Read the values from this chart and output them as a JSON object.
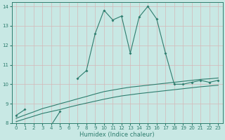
{
  "xlabel": "Humidex (Indice chaleur)",
  "x_values": [
    0,
    1,
    2,
    3,
    4,
    5,
    6,
    7,
    8,
    9,
    10,
    11,
    12,
    13,
    14,
    15,
    16,
    17,
    18,
    19,
    20,
    21,
    22,
    23
  ],
  "line1_y": [
    8.4,
    8.7,
    null,
    7.9,
    7.9,
    8.6,
    null,
    10.3,
    10.7,
    12.6,
    13.8,
    13.3,
    13.5,
    11.6,
    13.45,
    14.0,
    13.35,
    11.6,
    10.0,
    10.0,
    10.1,
    10.2,
    10.1,
    10.2
  ],
  "line2_y": [
    8.25,
    8.42,
    8.58,
    8.75,
    8.87,
    9.0,
    9.12,
    9.25,
    9.37,
    9.5,
    9.62,
    9.7,
    9.78,
    9.85,
    9.9,
    9.95,
    10.0,
    10.05,
    10.1,
    10.15,
    10.2,
    10.25,
    10.28,
    10.32
  ],
  "line3_y": [
    8.08,
    8.22,
    8.36,
    8.5,
    8.6,
    8.7,
    8.82,
    8.93,
    9.03,
    9.13,
    9.23,
    9.32,
    9.4,
    9.46,
    9.52,
    9.57,
    9.62,
    9.67,
    9.72,
    9.77,
    9.82,
    9.87,
    9.91,
    9.95
  ],
  "line_color": "#2e7d6e",
  "bg_color": "#c8e8e4",
  "grid_color": "#b8d8d4",
  "ylim": [
    8.0,
    14.2
  ],
  "xlim": [
    -0.5,
    23.5
  ],
  "yticks": [
    8,
    9,
    10,
    11,
    12,
    13,
    14
  ],
  "xticks": [
    0,
    1,
    2,
    3,
    4,
    5,
    6,
    7,
    8,
    9,
    10,
    11,
    12,
    13,
    14,
    15,
    16,
    17,
    18,
    19,
    20,
    21,
    22,
    23
  ]
}
